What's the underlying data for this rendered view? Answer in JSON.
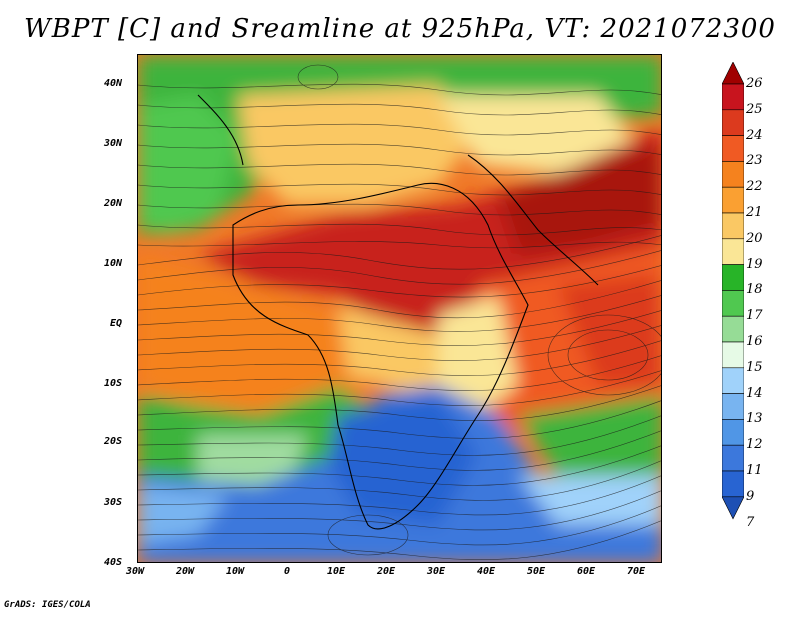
{
  "title": "WBPT [C] and Sreamline at 925hPa, VT: 2021072300",
  "credit": "GrADS: IGES/COLA",
  "x_axis": {
    "labels": [
      "30W",
      "20W",
      "10W",
      "0",
      "10E",
      "20E",
      "30E",
      "40E",
      "50E",
      "60E",
      "70E"
    ]
  },
  "y_axis": {
    "labels": [
      "40N",
      "30N",
      "20N",
      "10N",
      "EQ",
      "10S",
      "20S",
      "30S",
      "40S"
    ]
  },
  "colorbar": {
    "levels": [
      "26",
      "25",
      "24",
      "23",
      "22",
      "21",
      "20",
      "19",
      "18",
      "17",
      "16",
      "15",
      "14",
      "13",
      "12",
      "11",
      "9",
      "7"
    ],
    "colors": [
      "#a00000",
      "#c8141e",
      "#dc3a1e",
      "#f05a23",
      "#f5821e",
      "#faa032",
      "#fac864",
      "#fae696",
      "#28b428",
      "#50c850",
      "#96dc96",
      "#e6fae6",
      "#a0d2fa",
      "#78b4f0",
      "#5096e6",
      "#3c78dc",
      "#2864d2",
      "#1e50b4"
    ]
  },
  "field_regions": {
    "hot_core": "#c8201e",
    "warm": "#f07828",
    "mild": "#fac864",
    "green": "#3cb43c",
    "light_green": "#a0dca0",
    "blue": "#3c78dc",
    "light_blue": "#78b4f0"
  }
}
